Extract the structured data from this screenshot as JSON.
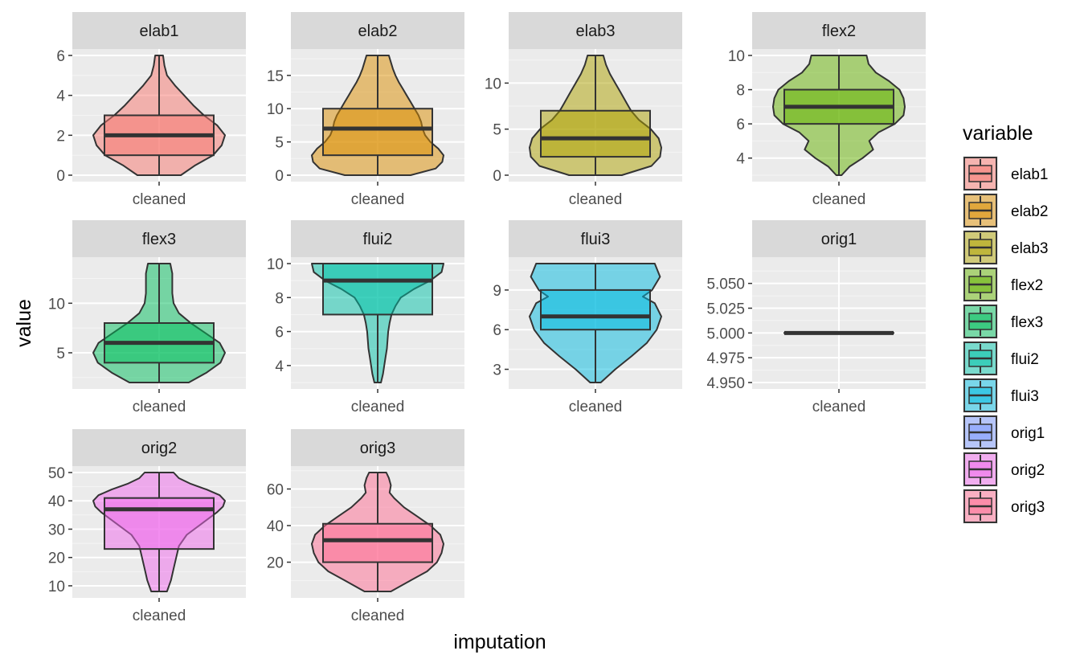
{
  "chart_data": {
    "type": "violin+box",
    "facet_by": "variable",
    "xlabel": "imputation",
    "ylabel": "value",
    "legend_title": "variable",
    "legend_position": "right",
    "grid": true,
    "panels": [
      {
        "name": "elab1",
        "color": "#F8766D",
        "x_category": "cleaned",
        "ylim": [
          0,
          6
        ],
        "ticks": [
          {
            "v": 0,
            "label": "0"
          },
          {
            "v": 2,
            "label": "2"
          },
          {
            "v": 4,
            "label": "4"
          },
          {
            "v": 6,
            "label": "6"
          }
        ],
        "box": {
          "min": 0,
          "q1": 1,
          "median": 2,
          "q3": 3,
          "max": 6
        },
        "violin": [
          [
            0,
            0.33
          ],
          [
            0.5,
            0.55
          ],
          [
            1,
            0.82
          ],
          [
            1.5,
            0.95
          ],
          [
            2,
            1.0
          ],
          [
            2.5,
            0.88
          ],
          [
            3,
            0.68
          ],
          [
            3.5,
            0.52
          ],
          [
            4,
            0.38
          ],
          [
            4.5,
            0.24
          ],
          [
            5,
            0.12
          ],
          [
            5.5,
            0.08
          ],
          [
            6,
            0.06
          ]
        ]
      },
      {
        "name": "elab2",
        "color": "#DB8E00",
        "x_category": "cleaned",
        "ylim": [
          0,
          18
        ],
        "ticks": [
          {
            "v": 0,
            "label": "0"
          },
          {
            "v": 5,
            "label": "5"
          },
          {
            "v": 10,
            "label": "10"
          },
          {
            "v": 15,
            "label": "15"
          }
        ],
        "box": {
          "min": 0,
          "q1": 3,
          "median": 7,
          "q3": 10,
          "max": 18
        },
        "violin": [
          [
            0,
            0.5
          ],
          [
            1,
            0.88
          ],
          [
            2,
            0.98
          ],
          [
            3,
            1.0
          ],
          [
            4,
            0.92
          ],
          [
            5,
            0.8
          ],
          [
            6,
            0.72
          ],
          [
            7,
            0.68
          ],
          [
            8,
            0.66
          ],
          [
            9,
            0.62
          ],
          [
            10,
            0.56
          ],
          [
            11,
            0.5
          ],
          [
            12,
            0.44
          ],
          [
            13,
            0.38
          ],
          [
            14,
            0.32
          ],
          [
            15,
            0.27
          ],
          [
            16,
            0.23
          ],
          [
            17,
            0.2
          ],
          [
            18,
            0.17
          ]
        ]
      },
      {
        "name": "elab3",
        "color": "#AEA200",
        "x_category": "cleaned",
        "ylim": [
          0,
          13
        ],
        "ticks": [
          {
            "v": 0,
            "label": "0"
          },
          {
            "v": 5,
            "label": "5"
          },
          {
            "v": 10,
            "label": "10"
          }
        ],
        "box": {
          "min": 0,
          "q1": 2,
          "median": 4,
          "q3": 7,
          "max": 13
        },
        "violin": [
          [
            0,
            0.4
          ],
          [
            1,
            0.85
          ],
          [
            2,
            0.98
          ],
          [
            3,
            1.0
          ],
          [
            4,
            0.96
          ],
          [
            5,
            0.84
          ],
          [
            6,
            0.66
          ],
          [
            7,
            0.54
          ],
          [
            8,
            0.46
          ],
          [
            9,
            0.38
          ],
          [
            10,
            0.3
          ],
          [
            11,
            0.22
          ],
          [
            12,
            0.16
          ],
          [
            13,
            0.12
          ]
        ]
      },
      {
        "name": "flex2",
        "color": "#64B200",
        "x_category": "cleaned",
        "ylim": [
          3,
          10
        ],
        "ticks": [
          {
            "v": 4,
            "label": "4"
          },
          {
            "v": 6,
            "label": "6"
          },
          {
            "v": 8,
            "label": "8"
          },
          {
            "v": 10,
            "label": "10"
          }
        ],
        "box": {
          "min": 3,
          "q1": 6,
          "median": 7,
          "q3": 8,
          "max": 10
        },
        "violin": [
          [
            3,
            0.04
          ],
          [
            3.5,
            0.16
          ],
          [
            4,
            0.36
          ],
          [
            4.5,
            0.52
          ],
          [
            5,
            0.46
          ],
          [
            5.5,
            0.6
          ],
          [
            6,
            0.85
          ],
          [
            6.5,
            0.98
          ],
          [
            7,
            1.0
          ],
          [
            7.5,
            0.98
          ],
          [
            8,
            0.92
          ],
          [
            8.5,
            0.76
          ],
          [
            9,
            0.56
          ],
          [
            9.5,
            0.45
          ],
          [
            10,
            0.42
          ]
        ]
      },
      {
        "name": "flex3",
        "color": "#00BD5C",
        "x_category": "cleaned",
        "ylim": [
          2,
          14
        ],
        "ticks": [
          {
            "v": 5,
            "label": "5"
          },
          {
            "v": 10,
            "label": "10"
          }
        ],
        "box": {
          "min": 2,
          "q1": 4,
          "median": 6,
          "q3": 8,
          "max": 14
        },
        "violin": [
          [
            2,
            0.45
          ],
          [
            3,
            0.72
          ],
          [
            4,
            0.93
          ],
          [
            5,
            1.0
          ],
          [
            6,
            0.92
          ],
          [
            7,
            0.7
          ],
          [
            8,
            0.48
          ],
          [
            9,
            0.3
          ],
          [
            10,
            0.22
          ],
          [
            11,
            0.2
          ],
          [
            12,
            0.2
          ],
          [
            13,
            0.2
          ],
          [
            14,
            0.17
          ]
        ]
      },
      {
        "name": "flui2",
        "color": "#00C1A7",
        "x_category": "cleaned",
        "ylim": [
          3,
          10
        ],
        "ticks": [
          {
            "v": 4,
            "label": "4"
          },
          {
            "v": 6,
            "label": "6"
          },
          {
            "v": 8,
            "label": "8"
          },
          {
            "v": 10,
            "label": "10"
          }
        ],
        "box": {
          "min": 3,
          "q1": 7,
          "median": 9,
          "q3": 10,
          "max": 10
        },
        "violin": [
          [
            3,
            0.05
          ],
          [
            3.5,
            0.08
          ],
          [
            4,
            0.1
          ],
          [
            4.5,
            0.12
          ],
          [
            5,
            0.14
          ],
          [
            5.5,
            0.15
          ],
          [
            6,
            0.16
          ],
          [
            6.5,
            0.18
          ],
          [
            7,
            0.21
          ],
          [
            7.5,
            0.27
          ],
          [
            8,
            0.35
          ],
          [
            8.5,
            0.55
          ],
          [
            9,
            0.8
          ],
          [
            9.5,
            0.97
          ],
          [
            10,
            1.0
          ]
        ]
      },
      {
        "name": "flui3",
        "color": "#00BAE0",
        "x_category": "cleaned",
        "ylim": [
          2,
          11
        ],
        "ticks": [
          {
            "v": 3,
            "label": "3"
          },
          {
            "v": 6,
            "label": "6"
          },
          {
            "v": 9,
            "label": "9"
          }
        ],
        "box": {
          "min": 2,
          "q1": 6,
          "median": 7,
          "q3": 9,
          "max": 11
        },
        "violin": [
          [
            2,
            0.08
          ],
          [
            3,
            0.3
          ],
          [
            4,
            0.55
          ],
          [
            5,
            0.78
          ],
          [
            6,
            0.93
          ],
          [
            7,
            1.0
          ],
          [
            8,
            0.9
          ],
          [
            8.5,
            0.72
          ],
          [
            9,
            0.86
          ],
          [
            10,
            0.98
          ],
          [
            11,
            0.9
          ]
        ]
      },
      {
        "name": "orig1",
        "color": "#7997FF",
        "x_category": "cleaned",
        "ylim": [
          4.95,
          5.07
        ],
        "ticks": [
          {
            "v": 4.95,
            "label": "4.950"
          },
          {
            "v": 4.975,
            "label": "4.975"
          },
          {
            "v": 5.0,
            "label": "5.000"
          },
          {
            "v": 5.025,
            "label": "5.025"
          },
          {
            "v": 5.05,
            "label": "5.050"
          }
        ],
        "box": {
          "min": 5,
          "q1": 5,
          "median": 5,
          "q3": 5,
          "max": 5
        },
        "violin": []
      },
      {
        "name": "orig2",
        "color": "#EF67EB",
        "x_category": "cleaned",
        "ylim": [
          8,
          50
        ],
        "ticks": [
          {
            "v": 10,
            "label": "10"
          },
          {
            "v": 20,
            "label": "20"
          },
          {
            "v": 30,
            "label": "30"
          },
          {
            "v": 40,
            "label": "40"
          },
          {
            "v": 50,
            "label": "50"
          }
        ],
        "box": {
          "min": 8,
          "q1": 23,
          "median": 37,
          "q3": 41,
          "max": 50
        },
        "violin": [
          [
            8,
            0.12
          ],
          [
            12,
            0.18
          ],
          [
            16,
            0.22
          ],
          [
            20,
            0.26
          ],
          [
            24,
            0.3
          ],
          [
            28,
            0.42
          ],
          [
            32,
            0.65
          ],
          [
            36,
            0.88
          ],
          [
            38,
            0.97
          ],
          [
            40,
            1.0
          ],
          [
            42,
            0.92
          ],
          [
            44,
            0.72
          ],
          [
            46,
            0.48
          ],
          [
            48,
            0.3
          ],
          [
            50,
            0.22
          ]
        ]
      },
      {
        "name": "orig3",
        "color": "#FF6C91",
        "x_category": "cleaned",
        "ylim": [
          4,
          69
        ],
        "ticks": [
          {
            "v": 20,
            "label": "20"
          },
          {
            "v": 40,
            "label": "40"
          },
          {
            "v": 60,
            "label": "60"
          }
        ],
        "box": {
          "min": 4,
          "q1": 20,
          "median": 32,
          "q3": 41,
          "max": 69
        },
        "violin": [
          [
            4,
            0.2
          ],
          [
            10,
            0.5
          ],
          [
            15,
            0.75
          ],
          [
            20,
            0.9
          ],
          [
            25,
            0.97
          ],
          [
            30,
            1.0
          ],
          [
            35,
            0.95
          ],
          [
            40,
            0.8
          ],
          [
            45,
            0.6
          ],
          [
            50,
            0.4
          ],
          [
            55,
            0.25
          ],
          [
            58,
            0.18
          ],
          [
            62,
            0.2
          ],
          [
            66,
            0.17
          ],
          [
            69,
            0.13
          ]
        ]
      }
    ]
  }
}
